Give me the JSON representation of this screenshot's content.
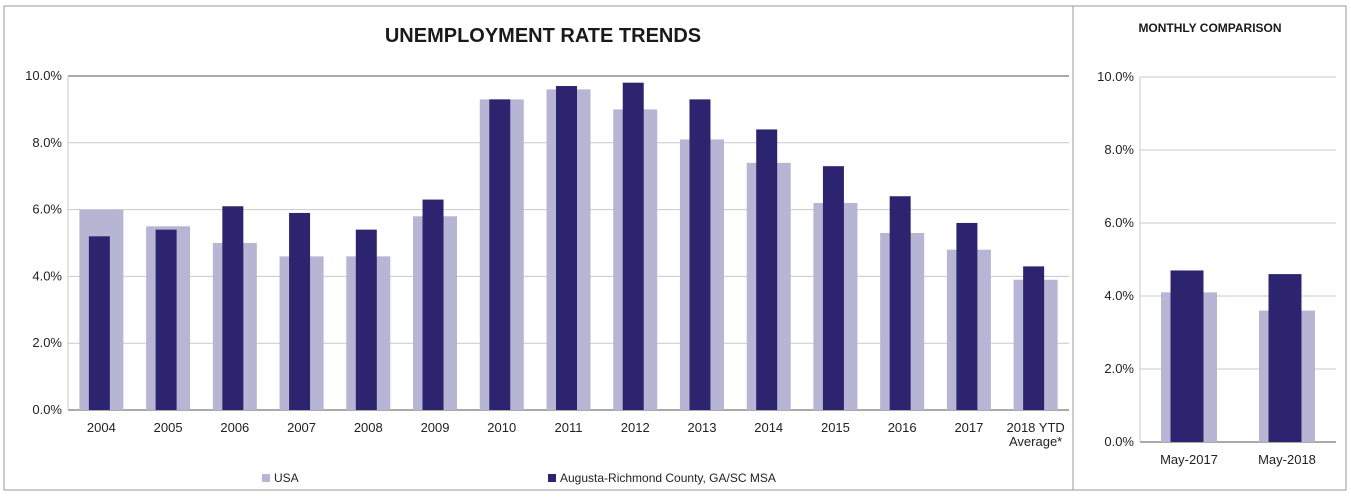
{
  "colors": {
    "usa": "#b7b5d4",
    "msa": "#2d2470",
    "grid": "#c8c8c8",
    "axis": "#555555",
    "frame": "#9a9a9a"
  },
  "legend": {
    "usa_label": "USA",
    "msa_label": "Augusta-Richmond County, GA/SC MSA",
    "position": "bottom"
  },
  "chart_data": [
    {
      "type": "bar",
      "title": "UNEMPLOYMENT RATE TRENDS",
      "categories": [
        "2004",
        "2005",
        "2006",
        "2007",
        "2008",
        "2009",
        "2010",
        "2011",
        "2012",
        "2013",
        "2014",
        "2015",
        "2016",
        "2017",
        "2018 YTD\nAverage*"
      ],
      "series": [
        {
          "name": "USA",
          "color": "#b7b5d4",
          "values": [
            6.0,
            5.5,
            5.0,
            4.6,
            4.6,
            5.8,
            9.3,
            9.6,
            9.0,
            8.1,
            7.4,
            6.2,
            5.3,
            4.8,
            3.9
          ]
        },
        {
          "name": "Augusta-Richmond County, GA/SC MSA",
          "color": "#2d2470",
          "values": [
            5.2,
            5.4,
            6.1,
            5.9,
            5.4,
            6.3,
            9.3,
            9.7,
            9.8,
            9.3,
            8.4,
            7.3,
            6.4,
            5.6,
            4.3
          ]
        }
      ],
      "yticks": [
        "0.0%",
        "2.0%",
        "4.0%",
        "6.0%",
        "8.0%",
        "10.0%"
      ],
      "ylim": [
        0,
        10
      ],
      "grid": true
    },
    {
      "type": "bar",
      "title": "MONTHLY COMPARISON",
      "categories": [
        "May-2017",
        "May-2018"
      ],
      "series": [
        {
          "name": "USA",
          "color": "#b7b5d4",
          "values": [
            4.1,
            3.6
          ]
        },
        {
          "name": "Augusta-Richmond County, GA/SC MSA",
          "color": "#2d2470",
          "values": [
            4.7,
            4.6
          ]
        }
      ],
      "yticks": [
        "0.0%",
        "2.0%",
        "4.0%",
        "6.0%",
        "8.0%",
        "10.0%"
      ],
      "ylim": [
        0,
        10
      ],
      "grid": true
    }
  ]
}
